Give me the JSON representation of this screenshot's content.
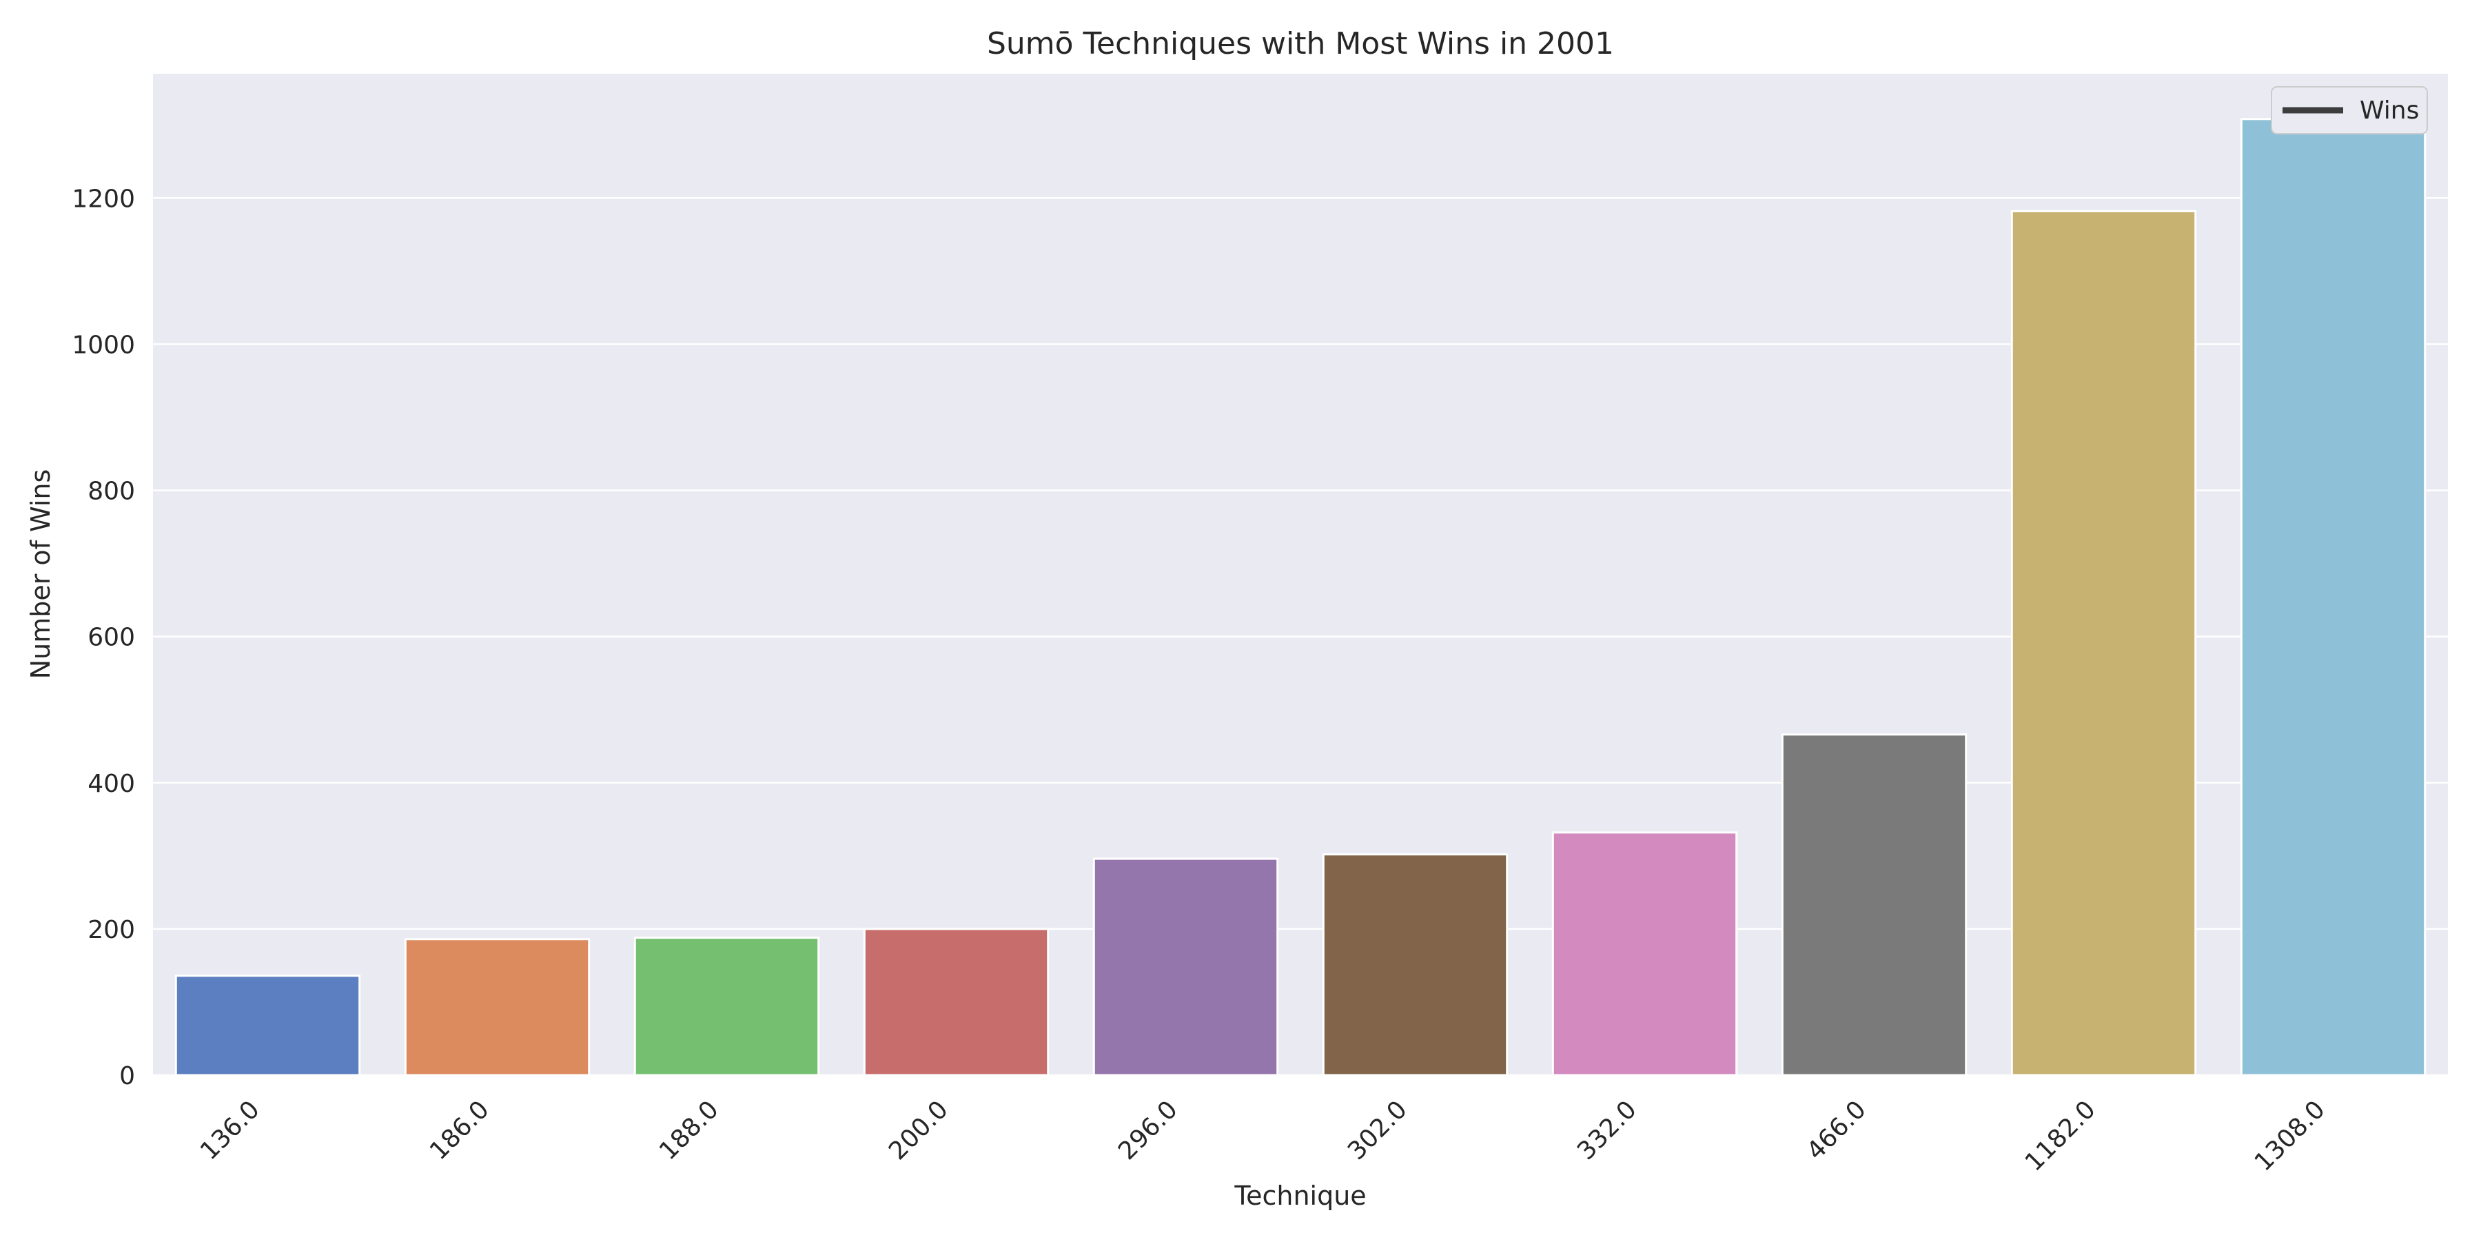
{
  "chart_data": {
    "type": "bar",
    "title": "Sumō Techniques with Most Wins in 2001",
    "xlabel": "Technique",
    "ylabel": "Number of Wins",
    "categories": [
      "136.0",
      "186.0",
      "188.0",
      "200.0",
      "296.0",
      "302.0",
      "332.0",
      "466.0",
      "1182.0",
      "1308.0"
    ],
    "values": [
      136,
      186,
      188,
      200,
      296,
      302,
      332,
      466,
      1182,
      1308
    ],
    "bar_colors": [
      "#5b7fc0",
      "#dc8b5e",
      "#74c070",
      "#c76e6c",
      "#9476ac",
      "#81644a",
      "#d38abf",
      "#7a7a7a",
      "#c7b272",
      "#8ec1d7"
    ],
    "ylim": [
      0,
      1370
    ],
    "yticks": [
      0,
      200,
      400,
      600,
      800,
      1000,
      1200
    ],
    "grid": true,
    "legend": {
      "placement": "top-right",
      "entries": [
        "Wins"
      ]
    },
    "colors": {
      "plot_background": "#eaeaf2",
      "grid": "#ffffff",
      "legend_line": "#3d3d3d"
    }
  }
}
